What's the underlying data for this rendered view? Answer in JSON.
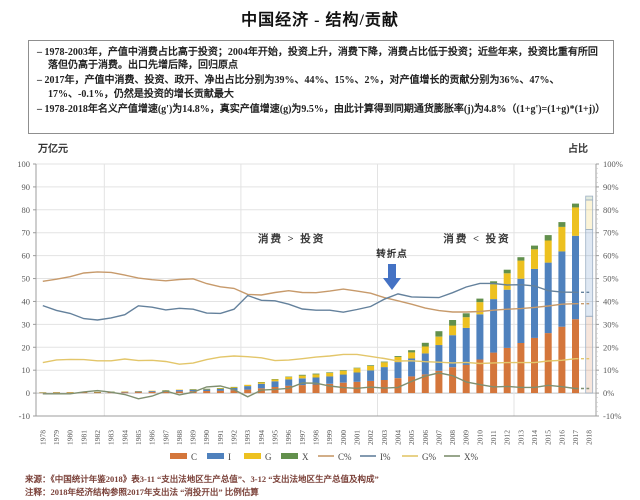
{
  "page": {
    "title": "中国经济 - 结构/贡献"
  },
  "bullets": [
    "– 1978-2003年，产值中消费占比高于投资；2004年开始，投资上升，消费下降，消费占比低于投资；近些年来，投资比重有所回落但仍高于消费。出口先增后降，回归原点",
    "– 2017年，产值中消费、投资、政开、净出占比分别为39%、44%、15%、2%，对产值增长的贡献分别为36%、47%、17%、-0.1%，仍然是投资的增长贡献最大",
    "– 1978-2018年名义产值增速(g')为14.8%，真实产值增速(g)为9.5%，由此计算得到同期通货膨胀率(j)为4.8%（(1+g')=(1+g)*(1+j)）"
  ],
  "chart": {
    "left_axis_label": "万亿元",
    "right_axis_label": "占比",
    "left_ticks": [
      "100",
      "90",
      "80",
      "70",
      "60",
      "50",
      "40",
      "30",
      "20",
      "10",
      "0",
      "-10"
    ],
    "right_ticks": [
      "100%",
      "90%",
      "80%",
      "70%",
      "60%",
      "50%",
      "40%",
      "30%",
      "20%",
      "10%",
      "0%",
      "-10%"
    ],
    "annotations": {
      "left_region": "消费 > 投资",
      "turning_point": "转折点",
      "right_region": "消费 < 投资"
    },
    "colors": {
      "C": "#d4763b",
      "I": "#4f81bd",
      "G": "#edc120",
      "X": "#62904c",
      "C%": "#c79a6b",
      "I%": "#64819c",
      "G%": "#e3c66a",
      "X%": "#7f8f70",
      "arrow": "#4472c4",
      "grid": "#e3e3e3",
      "axis": "#9c9c9c",
      "tick_text": "#595959"
    },
    "legend": [
      {
        "label": "C",
        "swatch": "bar",
        "color": "#d4763b"
      },
      {
        "label": "I",
        "swatch": "bar",
        "color": "#4f81bd"
      },
      {
        "label": "G",
        "swatch": "bar",
        "color": "#edc120"
      },
      {
        "label": "X",
        "swatch": "bar",
        "color": "#62904c"
      },
      {
        "label": "C%",
        "swatch": "line",
        "color": "#c79a6b"
      },
      {
        "label": "I%",
        "swatch": "line",
        "color": "#64819c"
      },
      {
        "label": "G%",
        "swatch": "line",
        "color": "#e3c66a"
      },
      {
        "label": "X%",
        "swatch": "line",
        "color": "#7f8f70"
      }
    ]
  },
  "chart_data": {
    "type": "bar",
    "subtype": "stacked-bars-with-share-lines",
    "title": "中国经济 - 结构/贡献",
    "xlabel": "",
    "ylabel_left": "万亿元",
    "ylabel_right": "占比",
    "ylim": [
      -10,
      100
    ],
    "gridlines": true,
    "legend_position": "bottom",
    "categories": [
      1978,
      1979,
      1980,
      1981,
      1982,
      1983,
      1984,
      1985,
      1986,
      1987,
      1988,
      1989,
      1990,
      1991,
      1992,
      1993,
      1994,
      1995,
      1996,
      1997,
      1998,
      1999,
      2000,
      2001,
      2002,
      2003,
      2004,
      2005,
      2006,
      2007,
      2008,
      2009,
      2010,
      2011,
      2012,
      2013,
      2014,
      2015,
      2016,
      2017,
      2018
    ],
    "gdp_totals": [
      0.37,
      0.41,
      0.46,
      0.49,
      0.54,
      0.6,
      0.73,
      0.91,
      1.04,
      1.22,
      1.52,
      1.72,
      1.89,
      2.21,
      2.72,
      3.57,
      4.86,
      6.13,
      7.18,
      7.97,
      8.52,
      9.06,
      10.03,
      11.09,
      12.17,
      13.74,
      16.18,
      18.73,
      21.94,
      27.01,
      31.92,
      34.85,
      41.21,
      48.79,
      53.86,
      59.3,
      64.36,
      68.89,
      74.64,
      82.71,
      86.0
    ],
    "bar_stack_order": [
      "C",
      "I",
      "G",
      "X"
    ],
    "note": "Stacked bar segment (万亿元) = share% × GDP total; lines are shares on right axis; 2018 bar and final line segments are estimates drawn hollow/dashed",
    "share_series": [
      {
        "name": "C",
        "line_label": "C%",
        "values": [
          48.8,
          49.7,
          50.8,
          52.4,
          52.9,
          52.7,
          51.5,
          50.2,
          49.5,
          49.0,
          49.6,
          49.9,
          47.8,
          46.4,
          45.7,
          43.1,
          42.8,
          43.9,
          44.7,
          43.9,
          43.8,
          44.5,
          45.4,
          44.5,
          43.6,
          41.7,
          40.3,
          38.8,
          37.1,
          36.0,
          35.4,
          35.4,
          35.6,
          36.2,
          36.6,
          36.9,
          37.4,
          38.0,
          38.8,
          39.0,
          39.0
        ]
      },
      {
        "name": "I",
        "line_label": "I%",
        "values": [
          38.2,
          36.1,
          34.8,
          32.5,
          31.9,
          32.8,
          34.2,
          38.1,
          37.5,
          36.3,
          37.0,
          36.6,
          34.9,
          34.8,
          36.6,
          42.6,
          40.5,
          40.3,
          38.8,
          36.7,
          36.2,
          36.2,
          35.3,
          36.5,
          37.8,
          41.0,
          43.3,
          42.0,
          41.8,
          41.7,
          43.8,
          46.3,
          47.9,
          47.9,
          47.2,
          47.3,
          46.8,
          44.7,
          44.1,
          44.0,
          44.0
        ]
      },
      {
        "name": "G",
        "line_label": "G%",
        "values": [
          13.3,
          14.5,
          14.7,
          14.6,
          14.1,
          14.1,
          14.9,
          14.2,
          14.3,
          13.8,
          12.6,
          13.1,
          14.6,
          15.7,
          16.2,
          15.9,
          15.4,
          14.2,
          14.4,
          15.0,
          15.7,
          16.2,
          16.9,
          16.9,
          16.0,
          15.1,
          14.0,
          14.1,
          13.7,
          13.5,
          13.2,
          13.4,
          12.9,
          13.2,
          13.3,
          13.3,
          13.3,
          14.0,
          14.3,
          15.0,
          15.0
        ]
      },
      {
        "name": "X",
        "line_label": "X%",
        "values": [
          -0.3,
          -0.3,
          -0.3,
          0.5,
          1.1,
          0.4,
          -0.6,
          -2.5,
          -1.3,
          0.9,
          -0.8,
          0.4,
          2.7,
          3.1,
          1.5,
          -1.6,
          1.3,
          1.6,
          2.1,
          4.4,
          4.3,
          3.1,
          2.4,
          2.1,
          2.6,
          2.2,
          2.5,
          5.1,
          7.4,
          8.8,
          7.6,
          4.9,
          3.7,
          2.7,
          2.9,
          2.5,
          2.5,
          3.4,
          2.8,
          2.0,
          2.0
        ]
      }
    ]
  },
  "footer": {
    "source_line": "来源：《中国统计年鉴2018》表3-11 “支出法地区生产总值”、3-12 “支出法地区生产总值及构成”",
    "note_line": "注释：2018年经济结构参照2017年支出法 “消投开出” 比例估算"
  }
}
